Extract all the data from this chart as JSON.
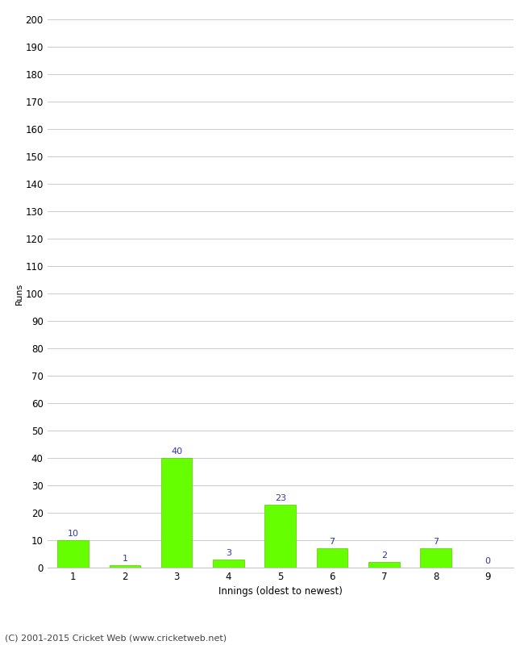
{
  "categories": [
    1,
    2,
    3,
    4,
    5,
    6,
    7,
    8,
    9
  ],
  "values": [
    10,
    1,
    40,
    3,
    23,
    7,
    2,
    7,
    0
  ],
  "bar_color": "#66ff00",
  "bar_edge_color": "#55cc00",
  "label_color": "#3333aa",
  "xlabel": "Innings (oldest to newest)",
  "ylabel": "Runs",
  "ylim": [
    0,
    200
  ],
  "yticks": [
    0,
    10,
    20,
    30,
    40,
    50,
    60,
    70,
    80,
    90,
    100,
    110,
    120,
    130,
    140,
    150,
    160,
    170,
    180,
    190,
    200
  ],
  "footer": "(C) 2001-2015 Cricket Web (www.cricketweb.net)",
  "background_color": "#ffffff",
  "grid_color": "#cccccc",
  "label_fontsize": 8,
  "axis_fontsize": 8.5,
  "ylabel_fontsize": 8,
  "footer_fontsize": 8
}
